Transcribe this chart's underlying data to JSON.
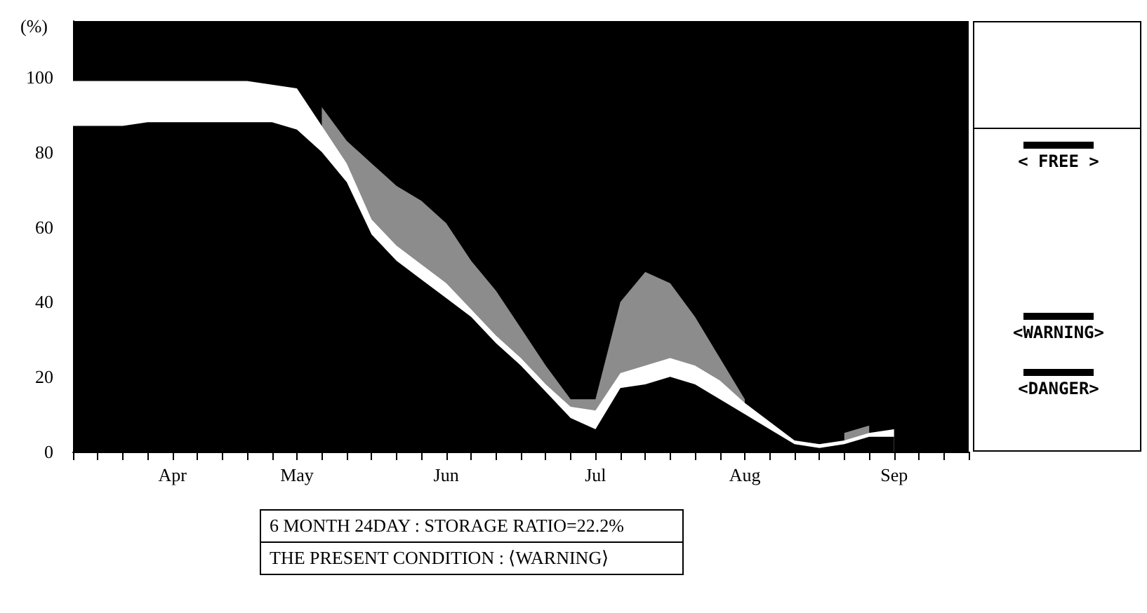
{
  "chart_data": {
    "type": "area",
    "stacked": true,
    "ylabel": "(%)",
    "categories": [
      null,
      null,
      null,
      null,
      "Apr",
      null,
      null,
      null,
      null,
      "May",
      null,
      null,
      null,
      null,
      null,
      "Jun",
      null,
      null,
      null,
      null,
      null,
      "Jul",
      null,
      null,
      null,
      null,
      null,
      "Aug",
      null,
      null,
      null,
      null,
      null,
      "Sep",
      null,
      null,
      null
    ],
    "series": [
      {
        "color": "#000000",
        "values": [
          87,
          87,
          87,
          88,
          88,
          88,
          88,
          88,
          88,
          86,
          80,
          72,
          58,
          51,
          46,
          41,
          36,
          29,
          23,
          16,
          9,
          6,
          17,
          18,
          20,
          18,
          14,
          10,
          6,
          2,
          1,
          2,
          4,
          4,
          null,
          null,
          null
        ]
      },
      {
        "color": "#ffffff",
        "values": [
          12,
          12,
          12,
          11,
          11,
          11,
          11,
          11,
          10,
          11,
          7,
          5,
          4,
          4,
          4,
          4,
          2,
          2,
          2,
          2,
          3,
          5,
          4,
          5,
          5,
          5,
          5,
          3,
          2,
          1,
          1,
          1,
          1,
          2,
          null,
          null,
          null
        ]
      },
      {
        "color": "#8c8c8c",
        "values": [
          null,
          null,
          null,
          null,
          null,
          null,
          null,
          null,
          null,
          null,
          5,
          6,
          15,
          16,
          17,
          16,
          13,
          12,
          8,
          5,
          2,
          3,
          19,
          25,
          20,
          13,
          6,
          1,
          null,
          null,
          null,
          2,
          2,
          null,
          null,
          null,
          null
        ]
      }
    ],
    "ylim": [
      0,
      115
    ],
    "yticks": [
      0,
      20,
      40,
      60,
      80,
      100
    ],
    "grid": false,
    "annotations": [
      "< FREE >",
      "<WARNING>",
      "<DANGER>",
      "6 MONTH 24DAY : STORAGE RATIO=22.2%",
      "THE PRESENT CONDITION : ⟨WARNING⟩"
    ]
  }
}
